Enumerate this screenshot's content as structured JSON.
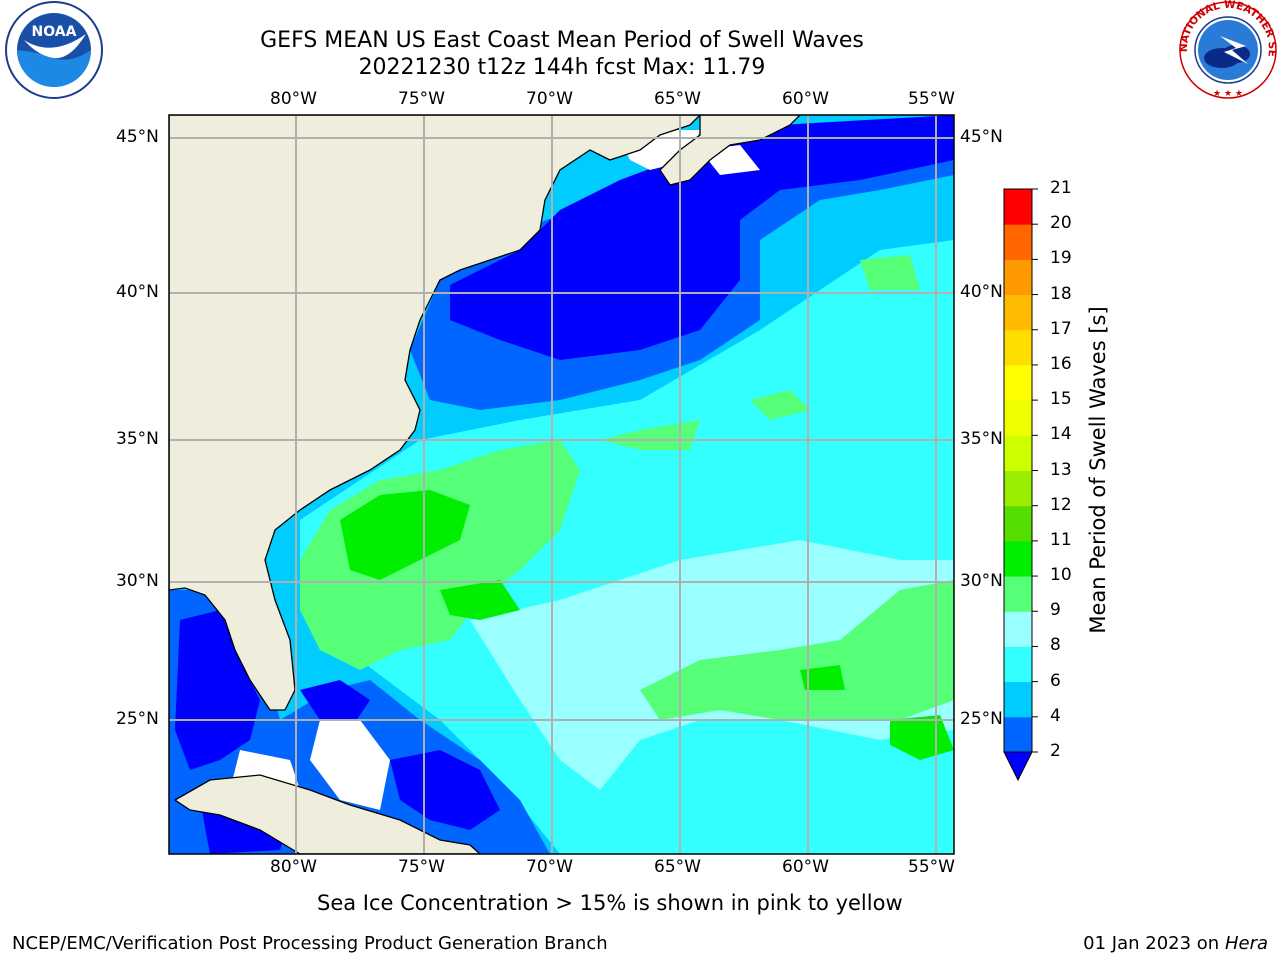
{
  "header": {
    "title_line1": "GEFS MEAN US East Coast Mean Period of Swell Waves",
    "title_line2": "20221230 t12z 144h fcst   Max: 11.79"
  },
  "logos": {
    "left": "noaa-logo",
    "right": "national-weather-service-logo",
    "left_text": "NOAA",
    "right_ring_text": "NATIONAL WEATHER SERVICE"
  },
  "map": {
    "lon_labels": [
      "80°W",
      "75°W",
      "70°W",
      "65°W",
      "60°W",
      "55°W"
    ],
    "lat_labels": [
      "45°N",
      "40°N",
      "35°N",
      "30°N",
      "25°N"
    ],
    "lon_values": [
      -80,
      -75,
      -70,
      -65,
      -60,
      -55
    ],
    "lat_values": [
      45,
      40,
      35,
      30,
      25
    ],
    "extent": {
      "lon": [
        -85,
        -54.2
      ],
      "lat": [
        20.5,
        45.8
      ]
    },
    "colors": {
      "land": "#efeedc",
      "no_data": "#ffffff",
      "grid": "#b0b0b0"
    }
  },
  "colorbar": {
    "label": "Mean Period of Swell Waves [s]",
    "ticks": [
      "2",
      "4",
      "6",
      "8",
      "9",
      "10",
      "11",
      "12",
      "13",
      "14",
      "15",
      "16",
      "17",
      "18",
      "19",
      "20",
      "21"
    ],
    "colors": [
      "#0066ff",
      "#00ccff",
      "#33ffff",
      "#99ffff",
      "#55ff77",
      "#00ee00",
      "#55dd00",
      "#99ee00",
      "#ccff00",
      "#eeff00",
      "#ffff00",
      "#ffdd00",
      "#ffbb00",
      "#ff9900",
      "#ff6600",
      "#ff3300",
      "#ff0000"
    ],
    "extend_low_color": "#0000ff"
  },
  "notes": {
    "sea_ice": "Sea Ice Concentration > 15% is shown in pink to yellow"
  },
  "footer": {
    "left": "NCEP/EMC/Verification Post Processing Product Generation Branch",
    "date": "01 Jan 2023 on ",
    "machine": "Hera"
  }
}
